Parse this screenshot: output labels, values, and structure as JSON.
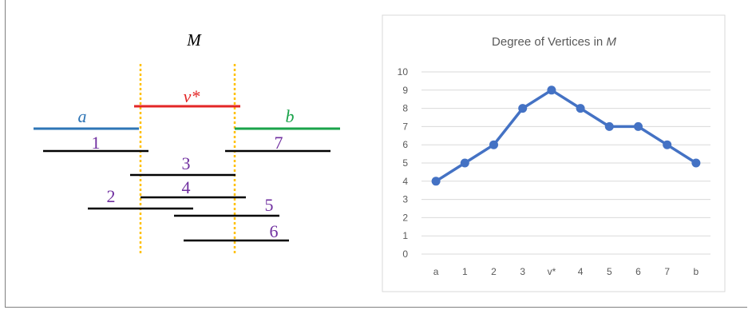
{
  "diagram": {
    "title": "M",
    "intervals": {
      "a": {
        "label": "a",
        "color": "#2e75b6"
      },
      "vstar": {
        "label": "v*",
        "color": "#e32626"
      },
      "b": {
        "label": "b",
        "color": "#1aa34a"
      },
      "i1": {
        "label": "1"
      },
      "i2": {
        "label": "2"
      },
      "i3": {
        "label": "3"
      },
      "i4": {
        "label": "4"
      },
      "i5": {
        "label": "5"
      },
      "i6": {
        "label": "6"
      },
      "i7": {
        "label": "7"
      }
    },
    "colors": {
      "numbered_label": "#7030a0",
      "dotted_line": "#ffc000",
      "interval_line": "#000000"
    }
  },
  "chart_data": {
    "type": "line",
    "title_prefix": "Degree of Vertices in ",
    "title_italic": "M",
    "categories": [
      "a",
      "1",
      "2",
      "3",
      "v*",
      "4",
      "5",
      "6",
      "7",
      "b"
    ],
    "series": [
      {
        "values": [
          4,
          5,
          6,
          8,
          9,
          8,
          7,
          7,
          6,
          5
        ],
        "color": "#4472c4"
      }
    ],
    "ylim": [
      0,
      10
    ],
    "yticks": [
      0,
      1,
      2,
      3,
      4,
      5,
      6,
      7,
      8,
      9,
      10
    ],
    "grid": true,
    "legend": "none"
  }
}
